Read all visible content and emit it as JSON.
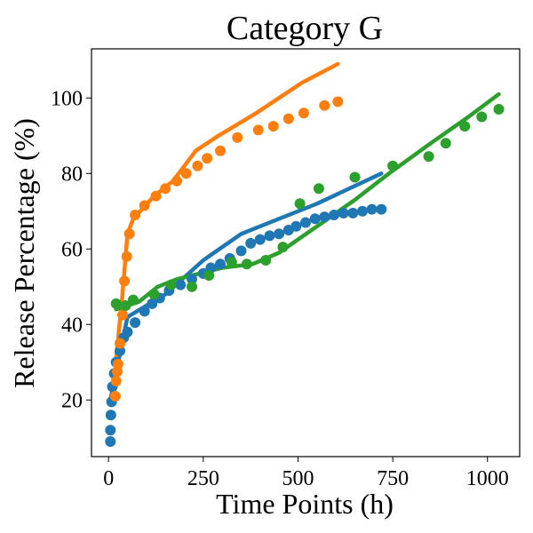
{
  "chart_data": {
    "type": "scatter",
    "title": "Category G",
    "xlabel": "Time Points (h)",
    "ylabel": "Release Percentage (%)",
    "xlim": [
      -45,
      1085
    ],
    "ylim": [
      5,
      113
    ],
    "xticks": [
      0,
      250,
      500,
      750,
      1000
    ],
    "yticks": [
      20,
      40,
      60,
      80,
      100
    ],
    "grid": false,
    "series": [
      {
        "color": "#1f77b4",
        "points": [
          [
            5,
            9
          ],
          [
            5,
            12
          ],
          [
            6,
            16
          ],
          [
            8,
            19.5
          ],
          [
            10,
            23.5
          ],
          [
            15,
            27
          ],
          [
            20,
            30
          ],
          [
            30,
            33
          ],
          [
            40,
            36.5
          ],
          [
            50,
            38
          ],
          [
            70,
            40.5
          ],
          [
            95,
            43.5
          ],
          [
            115,
            45.5
          ],
          [
            135,
            47
          ],
          [
            160,
            49
          ],
          [
            190,
            50.5
          ],
          [
            220,
            52
          ],
          [
            250,
            53.5
          ],
          [
            270,
            55
          ],
          [
            295,
            56
          ],
          [
            320,
            57.5
          ],
          [
            350,
            59.5
          ],
          [
            375,
            61.5
          ],
          [
            400,
            62.5
          ],
          [
            425,
            63.5
          ],
          [
            450,
            64
          ],
          [
            475,
            65
          ],
          [
            495,
            66
          ],
          [
            520,
            67
          ],
          [
            545,
            68
          ],
          [
            570,
            68.5
          ],
          [
            595,
            69
          ],
          [
            620,
            69.5
          ],
          [
            645,
            69.5
          ],
          [
            670,
            70
          ],
          [
            695,
            70.5
          ],
          [
            720,
            70.5
          ]
        ],
        "fit": [
          [
            5,
            20
          ],
          [
            50,
            42
          ],
          [
            100,
            45
          ],
          [
            150,
            48
          ],
          [
            250,
            57
          ],
          [
            350,
            64
          ],
          [
            450,
            68
          ],
          [
            550,
            72
          ],
          [
            720,
            80
          ]
        ]
      },
      {
        "color": "#ff7f0e",
        "points": [
          [
            18,
            21
          ],
          [
            20,
            25
          ],
          [
            23,
            27.5
          ],
          [
            25,
            29.5
          ],
          [
            30,
            35
          ],
          [
            37,
            42.5
          ],
          [
            42,
            51.5
          ],
          [
            48,
            58
          ],
          [
            55,
            64
          ],
          [
            70,
            69
          ],
          [
            95,
            71.5
          ],
          [
            125,
            74
          ],
          [
            150,
            76
          ],
          [
            180,
            78
          ],
          [
            205,
            80
          ],
          [
            235,
            82
          ],
          [
            260,
            84
          ],
          [
            295,
            86
          ],
          [
            340,
            89.5
          ],
          [
            395,
            91.5
          ],
          [
            435,
            92.5
          ],
          [
            475,
            94.5
          ],
          [
            515,
            96
          ],
          [
            570,
            98
          ],
          [
            605,
            99
          ]
        ],
        "fit": [
          [
            20,
            31
          ],
          [
            35,
            46
          ],
          [
            50,
            64
          ],
          [
            65,
            68
          ],
          [
            120,
            74
          ],
          [
            170,
            78
          ],
          [
            230,
            86
          ],
          [
            290,
            90
          ],
          [
            390,
            96
          ],
          [
            510,
            104
          ],
          [
            605,
            109
          ]
        ]
      },
      {
        "color": "#2ca02c",
        "points": [
          [
            20,
            45.5
          ],
          [
            45,
            45
          ],
          [
            65,
            46.5
          ],
          [
            120,
            48
          ],
          [
            165,
            50.5
          ],
          [
            220,
            50
          ],
          [
            265,
            53
          ],
          [
            325,
            56.5
          ],
          [
            365,
            56
          ],
          [
            415,
            57
          ],
          [
            460,
            60.5
          ],
          [
            505,
            72
          ],
          [
            555,
            76
          ],
          [
            650,
            79
          ],
          [
            750,
            82
          ],
          [
            845,
            84.5
          ],
          [
            890,
            88
          ],
          [
            940,
            92.5
          ],
          [
            985,
            95
          ],
          [
            1030,
            97
          ]
        ],
        "fit": [
          [
            20,
            44
          ],
          [
            80,
            46
          ],
          [
            130,
            50
          ],
          [
            180,
            52
          ],
          [
            240,
            53.5
          ],
          [
            300,
            55
          ],
          [
            380,
            56
          ],
          [
            450,
            59
          ],
          [
            550,
            66
          ],
          [
            650,
            73
          ],
          [
            740,
            80
          ],
          [
            850,
            88
          ],
          [
            950,
            95
          ],
          [
            1030,
            101
          ]
        ]
      }
    ]
  }
}
